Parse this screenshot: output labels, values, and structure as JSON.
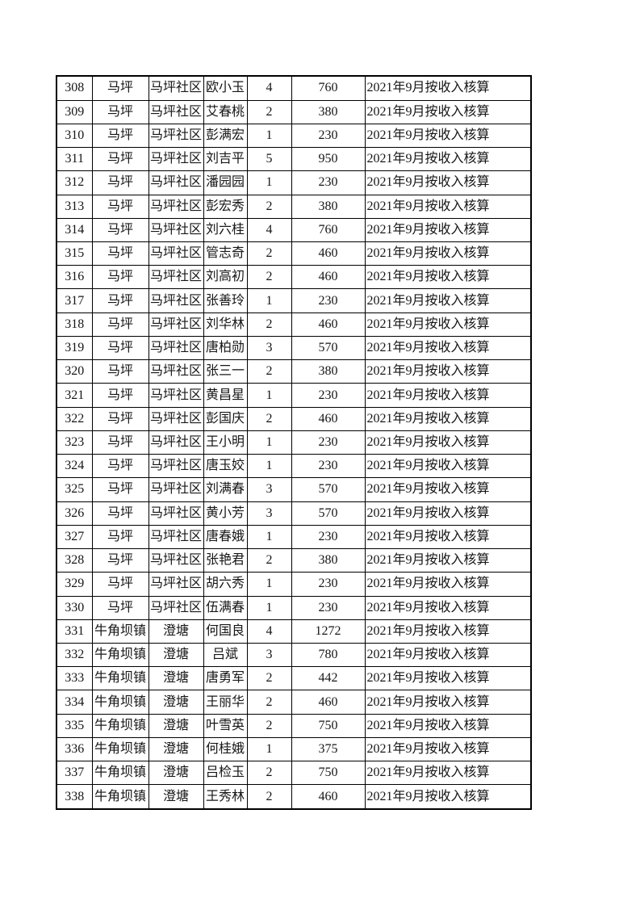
{
  "page": {
    "background_color": "#ffffff",
    "text_color": "#161616",
    "border_color": "#000000"
  },
  "table": {
    "column_keys": [
      "seq",
      "town",
      "community",
      "name",
      "count",
      "amount",
      "note"
    ],
    "rows": [
      {
        "seq": "308",
        "town": "马坪",
        "community": "马坪社区",
        "name": "欧小玉",
        "count": "4",
        "amount": "760",
        "note": "2021年9月按收入核算"
      },
      {
        "seq": "309",
        "town": "马坪",
        "community": "马坪社区",
        "name": "艾春桃",
        "count": "2",
        "amount": "380",
        "note": "2021年9月按收入核算"
      },
      {
        "seq": "310",
        "town": "马坪",
        "community": "马坪社区",
        "name": "彭满宏",
        "count": "1",
        "amount": "230",
        "note": "2021年9月按收入核算"
      },
      {
        "seq": "311",
        "town": "马坪",
        "community": "马坪社区",
        "name": "刘吉平",
        "count": "5",
        "amount": "950",
        "note": "2021年9月按收入核算"
      },
      {
        "seq": "312",
        "town": "马坪",
        "community": "马坪社区",
        "name": "潘园园",
        "count": "1",
        "amount": "230",
        "note": "2021年9月按收入核算"
      },
      {
        "seq": "313",
        "town": "马坪",
        "community": "马坪社区",
        "name": "彭宏秀",
        "count": "2",
        "amount": "380",
        "note": "2021年9月按收入核算"
      },
      {
        "seq": "314",
        "town": "马坪",
        "community": "马坪社区",
        "name": "刘六桂",
        "count": "4",
        "amount": "760",
        "note": "2021年9月按收入核算"
      },
      {
        "seq": "315",
        "town": "马坪",
        "community": "马坪社区",
        "name": "管志奇",
        "count": "2",
        "amount": "460",
        "note": "2021年9月按收入核算"
      },
      {
        "seq": "316",
        "town": "马坪",
        "community": "马坪社区",
        "name": "刘高初",
        "count": "2",
        "amount": "460",
        "note": "2021年9月按收入核算"
      },
      {
        "seq": "317",
        "town": "马坪",
        "community": "马坪社区",
        "name": "张善玲",
        "count": "1",
        "amount": "230",
        "note": "2021年9月按收入核算"
      },
      {
        "seq": "318",
        "town": "马坪",
        "community": "马坪社区",
        "name": "刘华林",
        "count": "2",
        "amount": "460",
        "note": "2021年9月按收入核算"
      },
      {
        "seq": "319",
        "town": "马坪",
        "community": "马坪社区",
        "name": "唐柏勋",
        "count": "3",
        "amount": "570",
        "note": "2021年9月按收入核算"
      },
      {
        "seq": "320",
        "town": "马坪",
        "community": "马坪社区",
        "name": "张三一",
        "count": "2",
        "amount": "380",
        "note": "2021年9月按收入核算"
      },
      {
        "seq": "321",
        "town": "马坪",
        "community": "马坪社区",
        "name": "黄昌星",
        "count": "1",
        "amount": "230",
        "note": "2021年9月按收入核算"
      },
      {
        "seq": "322",
        "town": "马坪",
        "community": "马坪社区",
        "name": "彭国庆",
        "count": "2",
        "amount": "460",
        "note": "2021年9月按收入核算"
      },
      {
        "seq": "323",
        "town": "马坪",
        "community": "马坪社区",
        "name": "王小明",
        "count": "1",
        "amount": "230",
        "note": "2021年9月按收入核算"
      },
      {
        "seq": "324",
        "town": "马坪",
        "community": "马坪社区",
        "name": "唐玉姣",
        "count": "1",
        "amount": "230",
        "note": "2021年9月按收入核算"
      },
      {
        "seq": "325",
        "town": "马坪",
        "community": "马坪社区",
        "name": "刘满春",
        "count": "3",
        "amount": "570",
        "note": "2021年9月按收入核算"
      },
      {
        "seq": "326",
        "town": "马坪",
        "community": "马坪社区",
        "name": "黄小芳",
        "count": "3",
        "amount": "570",
        "note": "2021年9月按收入核算"
      },
      {
        "seq": "327",
        "town": "马坪",
        "community": "马坪社区",
        "name": "唐春娥",
        "count": "1",
        "amount": "230",
        "note": "2021年9月按收入核算"
      },
      {
        "seq": "328",
        "town": "马坪",
        "community": "马坪社区",
        "name": "张艳君",
        "count": "2",
        "amount": "380",
        "note": "2021年9月按收入核算"
      },
      {
        "seq": "329",
        "town": "马坪",
        "community": "马坪社区",
        "name": "胡六秀",
        "count": "1",
        "amount": "230",
        "note": "2021年9月按收入核算"
      },
      {
        "seq": "330",
        "town": "马坪",
        "community": "马坪社区",
        "name": "伍满春",
        "count": "1",
        "amount": "230",
        "note": "2021年9月按收入核算"
      },
      {
        "seq": "331",
        "town": "牛角坝镇",
        "community": "澄塘",
        "name": "何国良",
        "count": "4",
        "amount": "1272",
        "note": "2021年9月按收入核算"
      },
      {
        "seq": "332",
        "town": "牛角坝镇",
        "community": "澄塘",
        "name": "吕斌",
        "count": "3",
        "amount": "780",
        "note": "2021年9月按收入核算"
      },
      {
        "seq": "333",
        "town": "牛角坝镇",
        "community": "澄塘",
        "name": "唐勇军",
        "count": "2",
        "amount": "442",
        "note": "2021年9月按收入核算"
      },
      {
        "seq": "334",
        "town": "牛角坝镇",
        "community": "澄塘",
        "name": "王丽华",
        "count": "2",
        "amount": "460",
        "note": "2021年9月按收入核算"
      },
      {
        "seq": "335",
        "town": "牛角坝镇",
        "community": "澄塘",
        "name": "叶雪英",
        "count": "2",
        "amount": "750",
        "note": "2021年9月按收入核算"
      },
      {
        "seq": "336",
        "town": "牛角坝镇",
        "community": "澄塘",
        "name": "何桂娥",
        "count": "1",
        "amount": "375",
        "note": "2021年9月按收入核算"
      },
      {
        "seq": "337",
        "town": "牛角坝镇",
        "community": "澄塘",
        "name": "吕检玉",
        "count": "2",
        "amount": "750",
        "note": "2021年9月按收入核算"
      },
      {
        "seq": "338",
        "town": "牛角坝镇",
        "community": "澄塘",
        "name": "王秀林",
        "count": "2",
        "amount": "460",
        "note": "2021年9月按收入核算"
      }
    ]
  }
}
